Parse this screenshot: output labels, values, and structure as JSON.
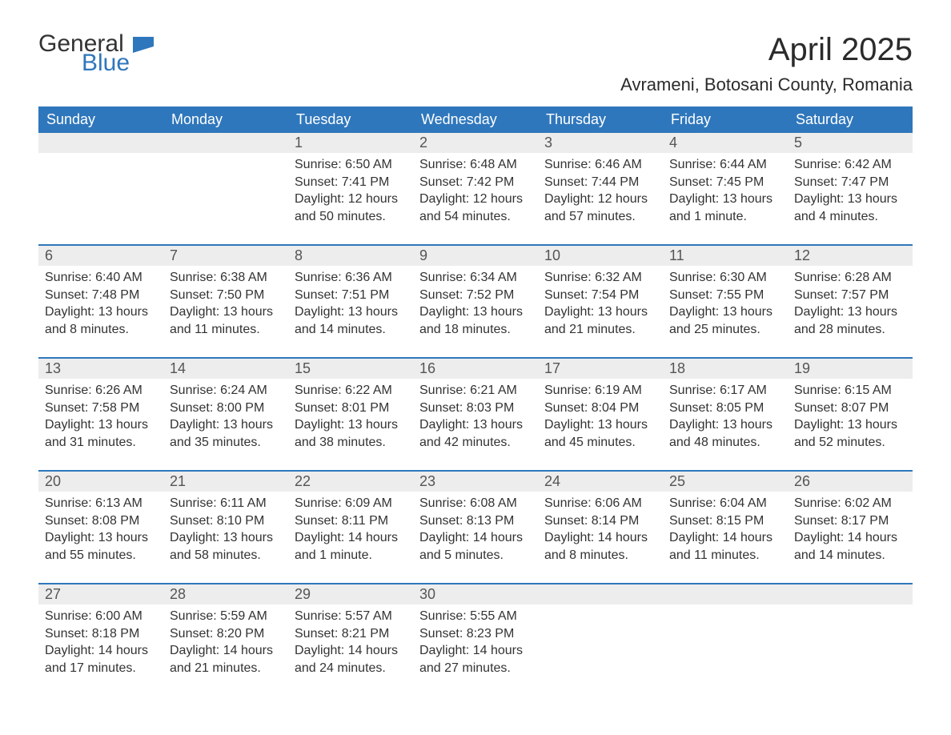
{
  "logo": {
    "word1": "General",
    "word2": "Blue",
    "text_color": "#333333",
    "accent_color": "#2f77bc"
  },
  "title": "April 2025",
  "location": "Avrameni, Botosani County, Romania",
  "colors": {
    "header_bg": "#2f77bc",
    "header_text": "#ffffff",
    "daynum_bg": "#ededed",
    "body_text": "#333333",
    "divider": "#2f77bc",
    "background": "#ffffff"
  },
  "typography": {
    "title_fontsize": 40,
    "location_fontsize": 22,
    "dow_fontsize": 18,
    "daynum_fontsize": 18,
    "detail_fontsize": 16
  },
  "days_of_week": [
    "Sunday",
    "Monday",
    "Tuesday",
    "Wednesday",
    "Thursday",
    "Friday",
    "Saturday"
  ],
  "weeks": [
    {
      "cells": [
        {
          "day": "",
          "sunrise": "",
          "sunset": "",
          "daylight1": "",
          "daylight2": ""
        },
        {
          "day": "",
          "sunrise": "",
          "sunset": "",
          "daylight1": "",
          "daylight2": ""
        },
        {
          "day": "1",
          "sunrise": "Sunrise: 6:50 AM",
          "sunset": "Sunset: 7:41 PM",
          "daylight1": "Daylight: 12 hours",
          "daylight2": "and 50 minutes."
        },
        {
          "day": "2",
          "sunrise": "Sunrise: 6:48 AM",
          "sunset": "Sunset: 7:42 PM",
          "daylight1": "Daylight: 12 hours",
          "daylight2": "and 54 minutes."
        },
        {
          "day": "3",
          "sunrise": "Sunrise: 6:46 AM",
          "sunset": "Sunset: 7:44 PM",
          "daylight1": "Daylight: 12 hours",
          "daylight2": "and 57 minutes."
        },
        {
          "day": "4",
          "sunrise": "Sunrise: 6:44 AM",
          "sunset": "Sunset: 7:45 PM",
          "daylight1": "Daylight: 13 hours",
          "daylight2": "and 1 minute."
        },
        {
          "day": "5",
          "sunrise": "Sunrise: 6:42 AM",
          "sunset": "Sunset: 7:47 PM",
          "daylight1": "Daylight: 13 hours",
          "daylight2": "and 4 minutes."
        }
      ]
    },
    {
      "cells": [
        {
          "day": "6",
          "sunrise": "Sunrise: 6:40 AM",
          "sunset": "Sunset: 7:48 PM",
          "daylight1": "Daylight: 13 hours",
          "daylight2": "and 8 minutes."
        },
        {
          "day": "7",
          "sunrise": "Sunrise: 6:38 AM",
          "sunset": "Sunset: 7:50 PM",
          "daylight1": "Daylight: 13 hours",
          "daylight2": "and 11 minutes."
        },
        {
          "day": "8",
          "sunrise": "Sunrise: 6:36 AM",
          "sunset": "Sunset: 7:51 PM",
          "daylight1": "Daylight: 13 hours",
          "daylight2": "and 14 minutes."
        },
        {
          "day": "9",
          "sunrise": "Sunrise: 6:34 AM",
          "sunset": "Sunset: 7:52 PM",
          "daylight1": "Daylight: 13 hours",
          "daylight2": "and 18 minutes."
        },
        {
          "day": "10",
          "sunrise": "Sunrise: 6:32 AM",
          "sunset": "Sunset: 7:54 PM",
          "daylight1": "Daylight: 13 hours",
          "daylight2": "and 21 minutes."
        },
        {
          "day": "11",
          "sunrise": "Sunrise: 6:30 AM",
          "sunset": "Sunset: 7:55 PM",
          "daylight1": "Daylight: 13 hours",
          "daylight2": "and 25 minutes."
        },
        {
          "day": "12",
          "sunrise": "Sunrise: 6:28 AM",
          "sunset": "Sunset: 7:57 PM",
          "daylight1": "Daylight: 13 hours",
          "daylight2": "and 28 minutes."
        }
      ]
    },
    {
      "cells": [
        {
          "day": "13",
          "sunrise": "Sunrise: 6:26 AM",
          "sunset": "Sunset: 7:58 PM",
          "daylight1": "Daylight: 13 hours",
          "daylight2": "and 31 minutes."
        },
        {
          "day": "14",
          "sunrise": "Sunrise: 6:24 AM",
          "sunset": "Sunset: 8:00 PM",
          "daylight1": "Daylight: 13 hours",
          "daylight2": "and 35 minutes."
        },
        {
          "day": "15",
          "sunrise": "Sunrise: 6:22 AM",
          "sunset": "Sunset: 8:01 PM",
          "daylight1": "Daylight: 13 hours",
          "daylight2": "and 38 minutes."
        },
        {
          "day": "16",
          "sunrise": "Sunrise: 6:21 AM",
          "sunset": "Sunset: 8:03 PM",
          "daylight1": "Daylight: 13 hours",
          "daylight2": "and 42 minutes."
        },
        {
          "day": "17",
          "sunrise": "Sunrise: 6:19 AM",
          "sunset": "Sunset: 8:04 PM",
          "daylight1": "Daylight: 13 hours",
          "daylight2": "and 45 minutes."
        },
        {
          "day": "18",
          "sunrise": "Sunrise: 6:17 AM",
          "sunset": "Sunset: 8:05 PM",
          "daylight1": "Daylight: 13 hours",
          "daylight2": "and 48 minutes."
        },
        {
          "day": "19",
          "sunrise": "Sunrise: 6:15 AM",
          "sunset": "Sunset: 8:07 PM",
          "daylight1": "Daylight: 13 hours",
          "daylight2": "and 52 minutes."
        }
      ]
    },
    {
      "cells": [
        {
          "day": "20",
          "sunrise": "Sunrise: 6:13 AM",
          "sunset": "Sunset: 8:08 PM",
          "daylight1": "Daylight: 13 hours",
          "daylight2": "and 55 minutes."
        },
        {
          "day": "21",
          "sunrise": "Sunrise: 6:11 AM",
          "sunset": "Sunset: 8:10 PM",
          "daylight1": "Daylight: 13 hours",
          "daylight2": "and 58 minutes."
        },
        {
          "day": "22",
          "sunrise": "Sunrise: 6:09 AM",
          "sunset": "Sunset: 8:11 PM",
          "daylight1": "Daylight: 14 hours",
          "daylight2": "and 1 minute."
        },
        {
          "day": "23",
          "sunrise": "Sunrise: 6:08 AM",
          "sunset": "Sunset: 8:13 PM",
          "daylight1": "Daylight: 14 hours",
          "daylight2": "and 5 minutes."
        },
        {
          "day": "24",
          "sunrise": "Sunrise: 6:06 AM",
          "sunset": "Sunset: 8:14 PM",
          "daylight1": "Daylight: 14 hours",
          "daylight2": "and 8 minutes."
        },
        {
          "day": "25",
          "sunrise": "Sunrise: 6:04 AM",
          "sunset": "Sunset: 8:15 PM",
          "daylight1": "Daylight: 14 hours",
          "daylight2": "and 11 minutes."
        },
        {
          "day": "26",
          "sunrise": "Sunrise: 6:02 AM",
          "sunset": "Sunset: 8:17 PM",
          "daylight1": "Daylight: 14 hours",
          "daylight2": "and 14 minutes."
        }
      ]
    },
    {
      "cells": [
        {
          "day": "27",
          "sunrise": "Sunrise: 6:00 AM",
          "sunset": "Sunset: 8:18 PM",
          "daylight1": "Daylight: 14 hours",
          "daylight2": "and 17 minutes."
        },
        {
          "day": "28",
          "sunrise": "Sunrise: 5:59 AM",
          "sunset": "Sunset: 8:20 PM",
          "daylight1": "Daylight: 14 hours",
          "daylight2": "and 21 minutes."
        },
        {
          "day": "29",
          "sunrise": "Sunrise: 5:57 AM",
          "sunset": "Sunset: 8:21 PM",
          "daylight1": "Daylight: 14 hours",
          "daylight2": "and 24 minutes."
        },
        {
          "day": "30",
          "sunrise": "Sunrise: 5:55 AM",
          "sunset": "Sunset: 8:23 PM",
          "daylight1": "Daylight: 14 hours",
          "daylight2": "and 27 minutes."
        },
        {
          "day": "",
          "sunrise": "",
          "sunset": "",
          "daylight1": "",
          "daylight2": ""
        },
        {
          "day": "",
          "sunrise": "",
          "sunset": "",
          "daylight1": "",
          "daylight2": ""
        },
        {
          "day": "",
          "sunrise": "",
          "sunset": "",
          "daylight1": "",
          "daylight2": ""
        }
      ]
    }
  ]
}
